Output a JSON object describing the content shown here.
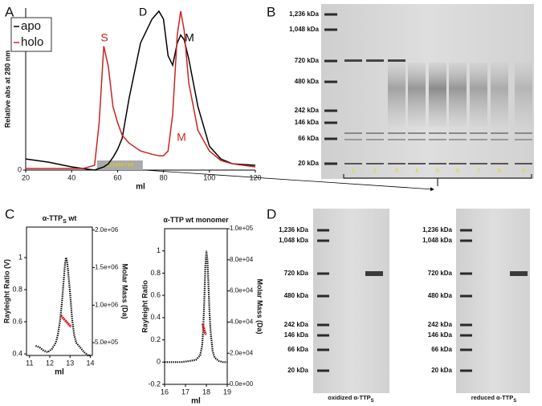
{
  "panel_labels": [
    "A",
    "B",
    "C",
    "D"
  ],
  "chart_data": [
    {
      "type": "line",
      "xlabel": "ml",
      "ylabel": "Relative abs at 280 nm",
      "x": [
        20,
        30,
        40,
        45,
        50,
        52,
        54,
        56,
        58,
        60,
        62,
        65,
        70,
        75,
        78,
        80,
        82,
        84,
        86,
        87.5,
        89,
        91,
        95,
        100,
        105,
        110,
        120
      ],
      "series": [
        {
          "name": "apo",
          "color": "#000000",
          "values": [
            0.07,
            0.05,
            0.02,
            0.01,
            0.0,
            0.01,
            0.02,
            0.04,
            0.08,
            0.13,
            0.2,
            0.45,
            0.8,
            0.95,
            1.0,
            0.95,
            0.72,
            0.66,
            0.8,
            0.85,
            0.82,
            0.7,
            0.4,
            0.15,
            0.07,
            0.04,
            0.03
          ]
        },
        {
          "name": "holo",
          "color": "#cc2222",
          "values": [
            0.01,
            0.01,
            0.01,
            0.01,
            0.03,
            0.3,
            0.78,
            0.65,
            0.4,
            0.3,
            0.22,
            0.17,
            0.12,
            0.1,
            0.09,
            0.09,
            0.12,
            0.35,
            0.85,
            1.0,
            0.88,
            0.55,
            0.25,
            0.12,
            0.06,
            0.04,
            0.02
          ]
        }
      ],
      "xlim": [
        20,
        120
      ],
      "xticks": [
        20,
        40,
        60,
        80,
        100,
        120
      ],
      "ylim": [
        0,
        1.02
      ],
      "yticks": [
        0
      ],
      "legend": "upper left",
      "annotations": [
        {
          "text": "S",
          "color": "#cc2222"
        },
        {
          "text": "D",
          "color": "#000000"
        },
        {
          "text": "M",
          "color": "#000000"
        },
        {
          "text": "M",
          "color": "#cc2222"
        }
      ],
      "fraction_label": "123456789"
    },
    {
      "type": "scatter",
      "title": [
        "α-TTP",
        "S",
        " wt"
      ],
      "xlabel": "ml",
      "ylabel": "Rayleight Ratio (V)",
      "y2label": "Molar Mass (Da)",
      "series": [
        {
          "color": "#000000",
          "x": [
            11.3,
            11.5,
            11.7,
            11.9,
            12.1,
            12.3,
            12.4,
            12.5,
            12.6,
            12.7,
            12.75,
            12.8,
            12.85,
            12.9,
            13.0,
            13.1,
            13.2,
            13.3,
            13.5,
            13.7,
            13.9,
            14.0
          ],
          "values": [
            0.45,
            0.44,
            0.42,
            0.41,
            0.43,
            0.47,
            0.52,
            0.6,
            0.72,
            0.88,
            0.96,
            1.0,
            0.98,
            0.92,
            0.78,
            0.62,
            0.52,
            0.47,
            0.44,
            0.41,
            0.39,
            0.39
          ]
        },
        {
          "color": "#dd1111",
          "axis": "y2",
          "x": [
            12.55,
            12.65,
            12.75,
            12.85,
            12.95,
            13.05
          ],
          "values": [
            860000,
            830000,
            800000,
            770000,
            740000,
            710000
          ]
        }
      ],
      "xlim": [
        10.85,
        14.1
      ],
      "xticks": [
        11,
        12,
        13,
        14
      ],
      "ylim": [
        0.39,
        1.19
      ],
      "yticks": [
        0.4,
        0.6,
        0.8,
        1
      ],
      "y2lim": [
        330000,
        2040000
      ],
      "y2ticks": [
        {
          "value": 500000,
          "label": "5.0e+05"
        },
        {
          "value": 1000000,
          "label": "1.0e+06"
        },
        {
          "value": 1500000,
          "label": "1.5e+06"
        },
        {
          "value": 2000000,
          "label": "2.0e+06"
        }
      ]
    },
    {
      "type": "scatter",
      "title": [
        "α-TTP wt monomer"
      ],
      "xlabel": "ml",
      "ylabel": "Rayleight Ratio",
      "y2label": "Molar Mass (Da)",
      "series": [
        {
          "color": "#000000",
          "x": [
            16.0,
            16.4,
            16.8,
            17.2,
            17.5,
            17.7,
            17.8,
            17.85,
            17.9,
            17.95,
            18.0,
            18.05,
            18.1,
            18.15,
            18.2,
            18.3,
            18.4,
            18.6,
            18.8,
            19.0
          ],
          "values": [
            0.0,
            0.0,
            0.0,
            0.01,
            0.02,
            0.06,
            0.15,
            0.3,
            0.55,
            0.85,
            1.0,
            0.92,
            0.7,
            0.45,
            0.28,
            0.1,
            0.04,
            0.01,
            0.0,
            0.0
          ]
        },
        {
          "color": "#dd1111",
          "axis": "y2",
          "x": [
            17.82,
            17.86,
            17.9,
            17.94,
            17.98
          ],
          "values": [
            39000,
            37000,
            35000,
            33000,
            32000
          ]
        }
      ],
      "xlim": [
        16,
        19
      ],
      "xticks": [
        16,
        17,
        18,
        19
      ],
      "ylim": [
        -0.2,
        1.2
      ],
      "yticks": [
        -0.2,
        0,
        0.2,
        0.4,
        0.6,
        0.8,
        1
      ],
      "y2lim": [
        0,
        100000
      ],
      "y2ticks": [
        {
          "value": 0,
          "label": "0.0e+00"
        },
        {
          "value": 20000,
          "label": "2.0e+04"
        },
        {
          "value": 40000,
          "label": "4.0e+04"
        },
        {
          "value": 60000,
          "label": "6.0e+04"
        },
        {
          "value": 80000,
          "label": "8.0e+04"
        },
        {
          "value": 100000,
          "label": "1.0e+05"
        }
      ]
    }
  ],
  "gel_b": {
    "markers": [
      "1,236 kDa",
      "1,048 kDa",
      "720 kDa",
      "480 kDa",
      "242 kDa",
      "146 kDa",
      "66 kDa",
      "20 kDa"
    ],
    "lanes": [
      "1",
      "2",
      "3",
      "4",
      "5",
      "6",
      "7",
      "8",
      "9"
    ]
  },
  "gel_d": {
    "markers": [
      "1,236 kDa",
      "1,048 kDa",
      "720 kDa",
      "480 kDa",
      "242 kDa",
      "146 kDa",
      "66 kDa",
      "20 kDa"
    ],
    "captions": [
      [
        "oxidized α-TTP",
        "S"
      ],
      [
        "reduced α-TTP",
        "S"
      ]
    ]
  }
}
